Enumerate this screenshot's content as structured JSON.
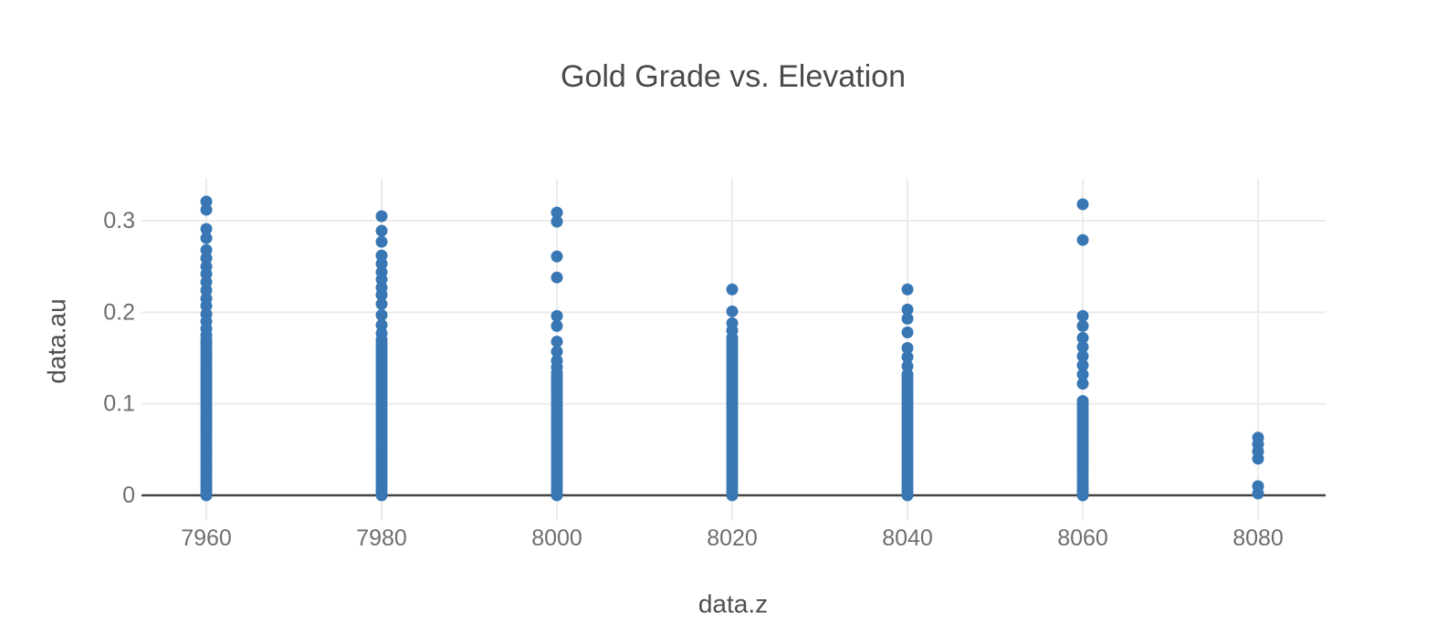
{
  "chart_data": {
    "type": "scatter",
    "title": "Gold Grade vs. Elevation",
    "xlabel": "data.z",
    "ylabel": "data.au",
    "x_ticks": [
      7960,
      7980,
      8000,
      8020,
      8040,
      8060,
      8080
    ],
    "x_tick_labels": [
      "7960",
      "7980",
      "8000",
      "8020",
      "8040",
      "8060",
      "8080"
    ],
    "y_ticks": [
      0,
      0.1,
      0.2,
      0.3
    ],
    "y_tick_labels": [
      "0",
      "0.1",
      "0.2",
      "0.3"
    ],
    "xlim": [
      7952.6,
      8087.7
    ],
    "ylim": [
      -0.028,
      0.347
    ],
    "grid": true,
    "legend": false,
    "background": "#ffffff",
    "marker_color": "#3877b4",
    "gridline_color": "#ebebeb",
    "axisline_color": "#444444",
    "series": [
      {
        "name": "gold grade",
        "columns": [
          {
            "z": 7960,
            "au": [
              0.321,
              0.312,
              0.291,
              0.281,
              0.268,
              0.259,
              0.25,
              0.242,
              0.233,
              0.224,
              0.215,
              0.207,
              0.198,
              0.19,
              0.182,
              0.175,
              0.17,
              0.166,
              0.162,
              0.158,
              0.154,
              0.15,
              0.146,
              0.142,
              0.138,
              0.134,
              0.13,
              0.126,
              0.122,
              0.118,
              0.114,
              0.11,
              0.106,
              0.102,
              0.098,
              0.094,
              0.09,
              0.086,
              0.082,
              0.078,
              0.074,
              0.07,
              0.066,
              0.062,
              0.058,
              0.054,
              0.05,
              0.046,
              0.042,
              0.038,
              0.034,
              0.03,
              0.026,
              0.022,
              0.018,
              0.014,
              0.01,
              0.006,
              0.002,
              0
            ]
          },
          {
            "z": 7980,
            "au": [
              0.305,
              0.289,
              0.277,
              0.262,
              0.253,
              0.244,
              0.236,
              0.227,
              0.219,
              0.209,
              0.197,
              0.186,
              0.177,
              0.17,
              0.166,
              0.162,
              0.158,
              0.154,
              0.15,
              0.146,
              0.142,
              0.138,
              0.134,
              0.13,
              0.126,
              0.122,
              0.118,
              0.114,
              0.11,
              0.106,
              0.102,
              0.098,
              0.094,
              0.09,
              0.086,
              0.082,
              0.078,
              0.074,
              0.07,
              0.066,
              0.062,
              0.058,
              0.054,
              0.05,
              0.046,
              0.042,
              0.038,
              0.034,
              0.03,
              0.026,
              0.022,
              0.018,
              0.014,
              0.01,
              0.006,
              0.002,
              0
            ]
          },
          {
            "z": 8000,
            "au": [
              0.309,
              0.299,
              0.261,
              0.238,
              0.196,
              0.185,
              0.168,
              0.157,
              0.147,
              0.14,
              0.134,
              0.13,
              0.126,
              0.122,
              0.118,
              0.114,
              0.11,
              0.106,
              0.102,
              0.098,
              0.094,
              0.09,
              0.086,
              0.082,
              0.078,
              0.074,
              0.07,
              0.066,
              0.062,
              0.058,
              0.054,
              0.05,
              0.046,
              0.042,
              0.038,
              0.034,
              0.03,
              0.026,
              0.022,
              0.018,
              0.014,
              0.01,
              0.006,
              0.002,
              0
            ]
          },
          {
            "z": 8020,
            "au": [
              0.225,
              0.201,
              0.188,
              0.18,
              0.172,
              0.168,
              0.164,
              0.16,
              0.156,
              0.152,
              0.148,
              0.144,
              0.14,
              0.136,
              0.132,
              0.128,
              0.124,
              0.12,
              0.116,
              0.112,
              0.108,
              0.104,
              0.1,
              0.096,
              0.092,
              0.088,
              0.084,
              0.08,
              0.076,
              0.072,
              0.068,
              0.064,
              0.06,
              0.056,
              0.052,
              0.048,
              0.044,
              0.04,
              0.036,
              0.032,
              0.028,
              0.024,
              0.02,
              0.016,
              0.012,
              0.008,
              0.004,
              0
            ]
          },
          {
            "z": 8040,
            "au": [
              0.225,
              0.203,
              0.193,
              0.178,
              0.161,
              0.151,
              0.141,
              0.132,
              0.128,
              0.124,
              0.12,
              0.116,
              0.112,
              0.108,
              0.104,
              0.1,
              0.096,
              0.092,
              0.088,
              0.084,
              0.08,
              0.076,
              0.072,
              0.068,
              0.064,
              0.06,
              0.056,
              0.052,
              0.048,
              0.044,
              0.04,
              0.036,
              0.032,
              0.028,
              0.024,
              0.02,
              0.016,
              0.012,
              0.008,
              0.004,
              0
            ]
          },
          {
            "z": 8060,
            "au": [
              0.318,
              0.279,
              0.196,
              0.185,
              0.172,
              0.162,
              0.152,
              0.142,
              0.132,
              0.122,
              0.103,
              0.099,
              0.095,
              0.091,
              0.087,
              0.083,
              0.079,
              0.075,
              0.071,
              0.067,
              0.063,
              0.059,
              0.055,
              0.051,
              0.047,
              0.043,
              0.039,
              0.035,
              0.031,
              0.027,
              0.023,
              0.019,
              0.015,
              0.011,
              0.007,
              0.003,
              0
            ]
          },
          {
            "z": 8080,
            "au": [
              0.063,
              0.056,
              0.048,
              0.04,
              0.01,
              0.002
            ]
          }
        ]
      }
    ]
  }
}
